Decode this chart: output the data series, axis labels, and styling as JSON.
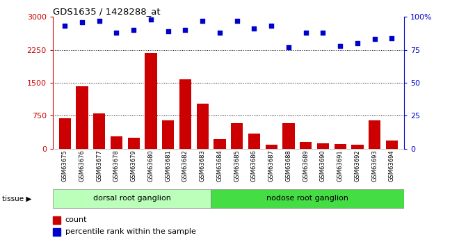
{
  "title": "GDS1635 / 1428288_at",
  "samples": [
    "GSM63675",
    "GSM63676",
    "GSM63677",
    "GSM63678",
    "GSM63679",
    "GSM63680",
    "GSM63681",
    "GSM63682",
    "GSM63683",
    "GSM63684",
    "GSM63685",
    "GSM63686",
    "GSM63687",
    "GSM63688",
    "GSM63689",
    "GSM63690",
    "GSM63691",
    "GSM63692",
    "GSM63693",
    "GSM63694"
  ],
  "counts": [
    700,
    1420,
    800,
    280,
    250,
    2180,
    650,
    1580,
    1020,
    220,
    580,
    350,
    90,
    580,
    160,
    120,
    110,
    90,
    650,
    190
  ],
  "percentiles": [
    93,
    96,
    97,
    88,
    90,
    98,
    89,
    90,
    97,
    88,
    97,
    91,
    93,
    77,
    88,
    88,
    78,
    80,
    83,
    84
  ],
  "groups": [
    {
      "label": "dorsal root ganglion",
      "start": 0,
      "end": 9,
      "color": "#bbffbb"
    },
    {
      "label": "nodose root ganglion",
      "start": 9,
      "end": 20,
      "color": "#44dd44"
    }
  ],
  "left_ylim": [
    0,
    3000
  ],
  "left_yticks": [
    0,
    750,
    1500,
    2250,
    3000
  ],
  "right_ylim": [
    0,
    100
  ],
  "right_yticks": [
    0,
    25,
    50,
    75,
    100
  ],
  "bar_color": "#CC0000",
  "dot_color": "#0000CC",
  "grid_color": "#000000",
  "bg_color": "#FFFFFF",
  "axis_color_left": "#CC0000",
  "axis_color_right": "#0000CC",
  "tissue_label": "tissue ▶",
  "legend_count_label": "count",
  "legend_pct_label": "percentile rank within the sample"
}
